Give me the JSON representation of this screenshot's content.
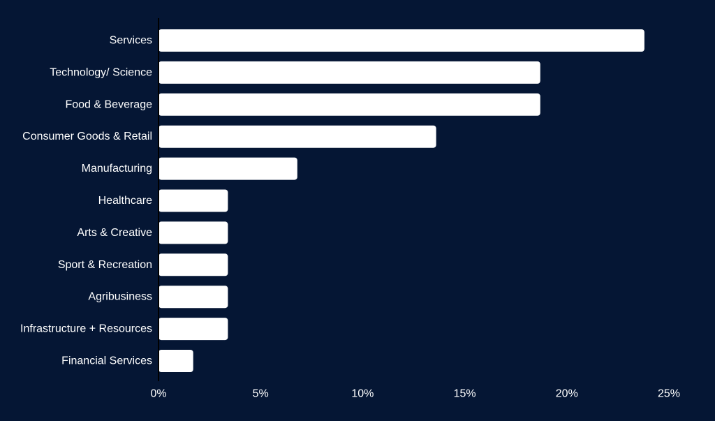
{
  "colors": {
    "background": "#051634",
    "bar": "#ffffff",
    "text": "#ffffff",
    "axis": "#000000"
  },
  "chart_data": {
    "type": "bar",
    "orientation": "horizontal",
    "categories": [
      "Services",
      "Technology/ Science",
      "Food & Beverage",
      "Consumer Goods & Retail",
      "Manufacturing",
      "Healthcare",
      "Arts & Creative",
      "Sport & Recreation",
      "Agribusiness",
      "Infrastructure + Resources",
      "Financial Services"
    ],
    "values": [
      23.8,
      18.7,
      18.7,
      13.6,
      6.8,
      3.4,
      3.4,
      3.4,
      3.4,
      3.4,
      1.7
    ],
    "value_unit": "%",
    "xlim": [
      0,
      25
    ],
    "x_ticks": [
      "0%",
      "5%",
      "10%",
      "15%",
      "20%",
      "25%"
    ],
    "title": "",
    "xlabel": "",
    "ylabel": "",
    "grid": false,
    "legend": "none"
  }
}
